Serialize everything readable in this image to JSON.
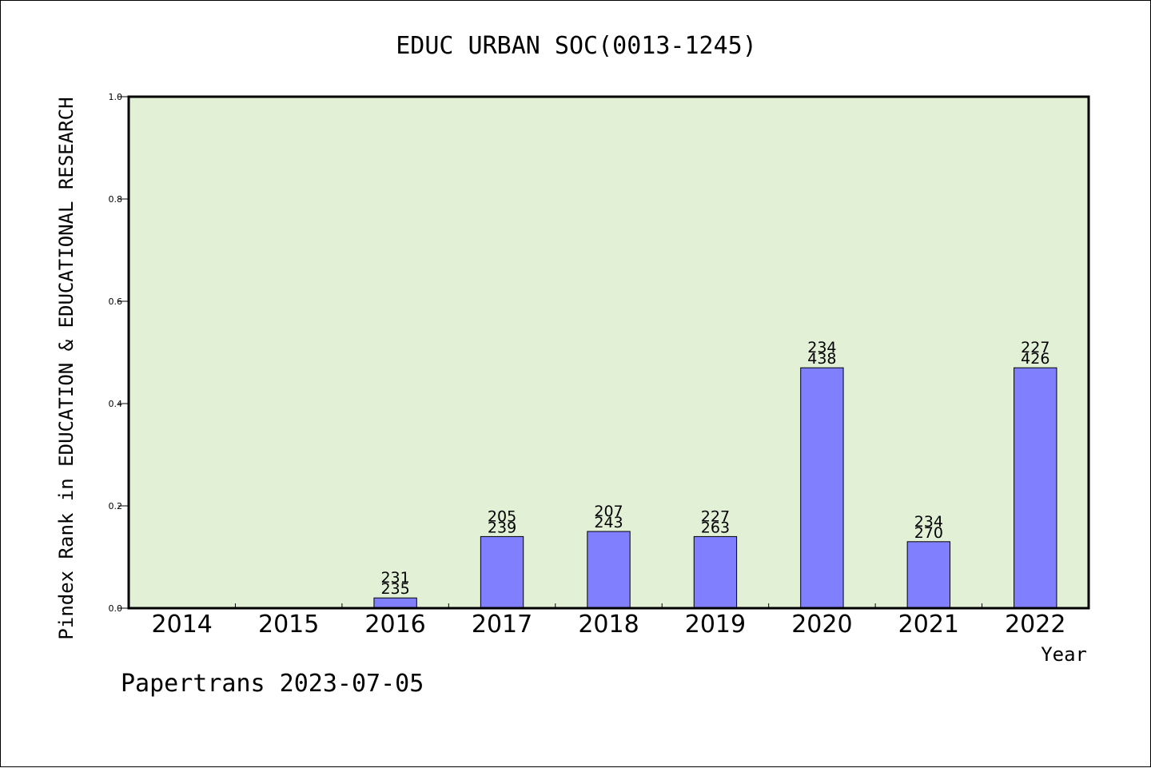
{
  "chart_data": {
    "type": "bar",
    "title": "EDUC URBAN SOC(0013-1245)",
    "xlabel": "Year",
    "ylabel": "Pindex Rank in EDUCATION & EDUCATIONAL RESEARCH",
    "footer": "Papertrans 2023-07-05",
    "categories": [
      "2014",
      "2015",
      "2016",
      "2017",
      "2018",
      "2019",
      "2020",
      "2021",
      "2022"
    ],
    "values": [
      0,
      0,
      0.02,
      0.14,
      0.15,
      0.14,
      0.47,
      0.13,
      0.47
    ],
    "labels_top": [
      "",
      "",
      "231",
      "205",
      "207",
      "227",
      "234",
      "234",
      "227"
    ],
    "labels_bottom": [
      "",
      "",
      "235",
      "239",
      "243",
      "263",
      "438",
      "270",
      "426"
    ],
    "ylim": [
      0,
      1.0
    ],
    "yticks": [
      "0.0",
      "0.2",
      "0.4",
      "0.6",
      "0.8",
      "1.0"
    ],
    "grid": false,
    "colors": {
      "plot_background": "#e2f0d6",
      "bar_fill": "#8080ff",
      "bar_stroke": "#000000"
    }
  }
}
